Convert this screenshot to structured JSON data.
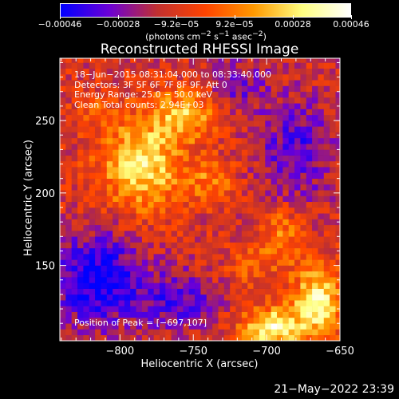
{
  "chart_data": {
    "type": "heatmap",
    "title": "Reconstructed RHESSI Image",
    "xlabel": "Heliocentric X (arcsec)",
    "ylabel": "Heliocentric Y (arcsec)",
    "xlim": [
      -841,
      -650
    ],
    "ylim": [
      98,
      293
    ],
    "xticks": [
      {
        "value": -800,
        "label": "−800"
      },
      {
        "value": -750,
        "label": "−750"
      },
      {
        "value": -700,
        "label": "−700"
      },
      {
        "value": -650,
        "label": "−650"
      }
    ],
    "yticks": [
      {
        "value": 250,
        "label": "250"
      },
      {
        "value": 200,
        "label": "200"
      },
      {
        "value": 150,
        "label": "150"
      }
    ],
    "info_lines": [
      "18−Jun−2015 08:31:04.000 to 08:33:40.000",
      "Detectors: 3F 5F 6F 7F 8F 9F, Att 0",
      "Energy Range: 25.0 − 50.0 keV",
      "Clean      Total counts: 2.94E+03"
    ],
    "peak_label": "Position of Peak = [−697,107]",
    "colorbar": {
      "min": -0.00046,
      "max": 0.00046,
      "ticks": [
        "−0.00046",
        "−0.00028",
        "−9.2e−05",
        "9.2e−05",
        "0.00028",
        "0.00046"
      ],
      "unit_label": "(photons cm<sup>−2</sup> s<sup>−1</sup> asec<sup>−2</sup>)",
      "colormap": [
        "#0000ff",
        "#6b00d6",
        "#c03030",
        "#ff4400",
        "#ff9900",
        "#ffff80",
        "#ffffff"
      ]
    },
    "peak": {
      "x": -697,
      "y": 107
    },
    "grid": false
  },
  "footer": {
    "timestamp": "21−May−2022 23:39"
  },
  "colors": {
    "background": "#000000",
    "text": "#ffffff"
  }
}
